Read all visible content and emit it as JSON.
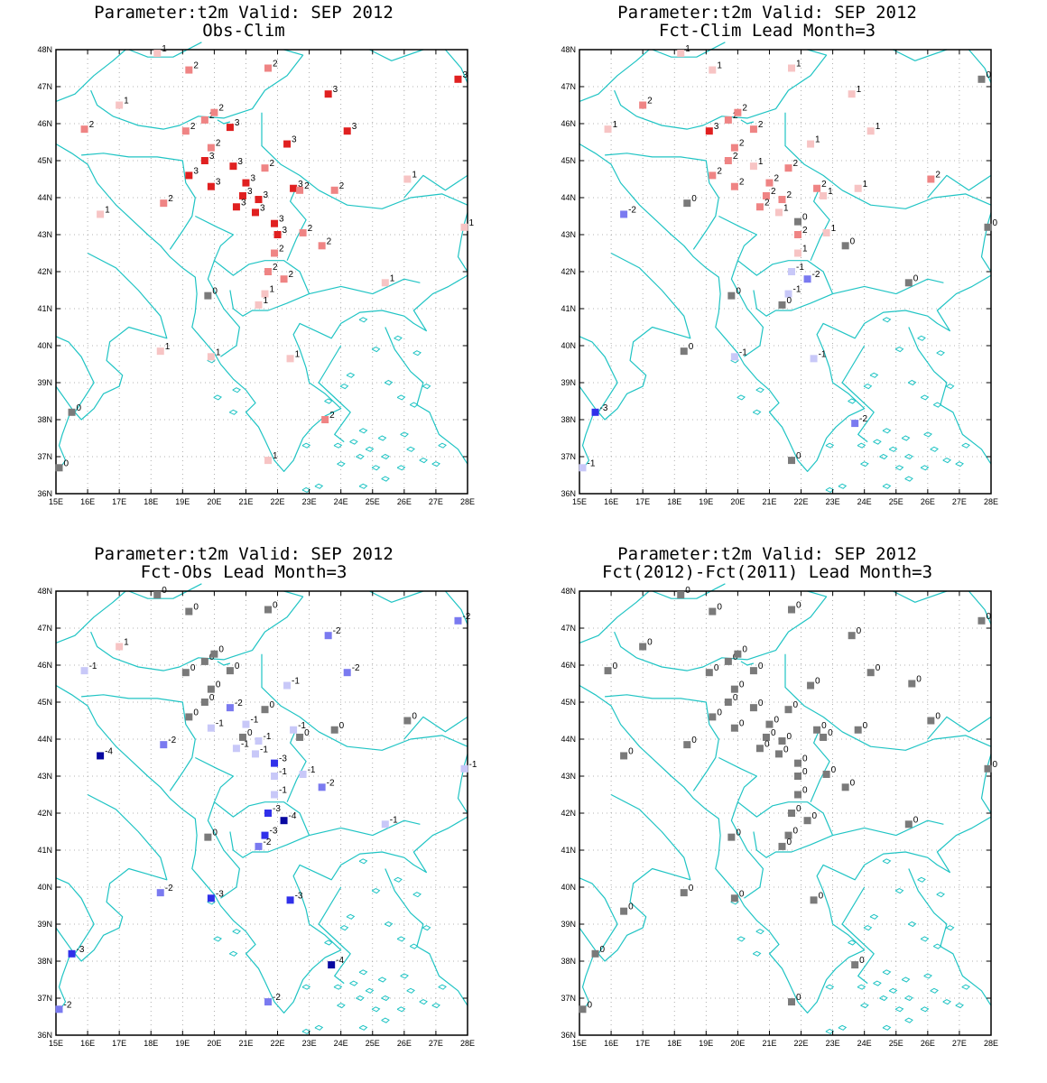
{
  "colors": {
    "coast": "#20c4c4",
    "grid": "#9a9a9a",
    "zero": "#7a7a7a",
    "pos": [
      "#f7c4c4",
      "#ef8484",
      "#e02020"
    ],
    "neg": [
      "#c8c8f8",
      "#7a7af0",
      "#3030ea",
      "#0808a0"
    ]
  },
  "axes": {
    "lon_ticks": [
      "15E",
      "16E",
      "17E",
      "18E",
      "19E",
      "20E",
      "21E",
      "22E",
      "23E",
      "24E",
      "25E",
      "26E",
      "27E",
      "28E"
    ],
    "lat_ticks": [
      "36N",
      "37N",
      "38N",
      "39N",
      "40N",
      "41N",
      "42N",
      "43N",
      "44N",
      "45N",
      "46N",
      "47N",
      "48N"
    ],
    "lon_range": [
      15,
      28
    ],
    "lat_range": [
      36,
      48
    ]
  },
  "panels": [
    {
      "title1": "Parameter:t2m Valid: SEP 2012",
      "title2": "Obs-Clim",
      "stations": [
        [
          18.2,
          47.9,
          1
        ],
        [
          19.2,
          47.45,
          2
        ],
        [
          21.7,
          47.5,
          2
        ],
        [
          23.6,
          46.8,
          3
        ],
        [
          27.7,
          47.2,
          3
        ],
        [
          17.0,
          46.5,
          1
        ],
        [
          15.9,
          45.85,
          2
        ],
        [
          19.1,
          45.8,
          2
        ],
        [
          19.7,
          46.1,
          2
        ],
        [
          20.0,
          46.3,
          2
        ],
        [
          20.5,
          45.9,
          3
        ],
        [
          22.3,
          45.45,
          3
        ],
        [
          24.2,
          45.8,
          3
        ],
        [
          19.9,
          45.35,
          2
        ],
        [
          19.7,
          45.0,
          3
        ],
        [
          20.6,
          44.85,
          3
        ],
        [
          21.6,
          44.8,
          2
        ],
        [
          19.2,
          44.6,
          3
        ],
        [
          19.9,
          44.3,
          3
        ],
        [
          21.0,
          44.4,
          3
        ],
        [
          20.9,
          44.05,
          3
        ],
        [
          21.4,
          43.95,
          3
        ],
        [
          22.5,
          44.25,
          3
        ],
        [
          22.7,
          44.2,
          2
        ],
        [
          23.8,
          44.2,
          2
        ],
        [
          26.1,
          44.5,
          1
        ],
        [
          18.4,
          43.85,
          2
        ],
        [
          20.7,
          43.75,
          3
        ],
        [
          21.3,
          43.6,
          3
        ],
        [
          21.9,
          43.3,
          3
        ],
        [
          22.0,
          43.0,
          3
        ],
        [
          22.8,
          43.05,
          2
        ],
        [
          23.4,
          42.7,
          2
        ],
        [
          21.9,
          42.5,
          2
        ],
        [
          16.4,
          43.55,
          1
        ],
        [
          27.9,
          43.2,
          1
        ],
        [
          21.7,
          42.0,
          2
        ],
        [
          22.2,
          41.8,
          2
        ],
        [
          21.6,
          41.4,
          1
        ],
        [
          21.4,
          41.1,
          1
        ],
        [
          25.4,
          41.7,
          1
        ],
        [
          19.8,
          41.35,
          0
        ],
        [
          18.3,
          39.85,
          1
        ],
        [
          19.9,
          39.7,
          1
        ],
        [
          22.4,
          39.65,
          1
        ],
        [
          23.5,
          38.0,
          2
        ],
        [
          15.5,
          38.2,
          0
        ],
        [
          15.1,
          36.7,
          0
        ],
        [
          21.7,
          36.9,
          1
        ]
      ]
    },
    {
      "title1": "Parameter:t2m Valid: SEP 2012",
      "title2": "Fct-Clim Lead Month=3",
      "stations": [
        [
          18.2,
          47.9,
          1
        ],
        [
          19.2,
          47.45,
          1
        ],
        [
          21.7,
          47.5,
          1
        ],
        [
          23.6,
          46.8,
          1
        ],
        [
          27.7,
          47.2,
          0
        ],
        [
          17.0,
          46.5,
          2
        ],
        [
          15.9,
          45.85,
          1
        ],
        [
          19.1,
          45.8,
          3
        ],
        [
          19.7,
          46.1,
          2
        ],
        [
          20.0,
          46.3,
          2
        ],
        [
          20.5,
          45.85,
          2
        ],
        [
          22.3,
          45.45,
          1
        ],
        [
          24.2,
          45.8,
          1
        ],
        [
          19.9,
          45.35,
          2
        ],
        [
          19.7,
          45.0,
          2
        ],
        [
          20.5,
          44.85,
          1
        ],
        [
          21.6,
          44.8,
          2
        ],
        [
          19.2,
          44.6,
          2
        ],
        [
          19.9,
          44.3,
          2
        ],
        [
          21.0,
          44.4,
          2
        ],
        [
          20.9,
          44.05,
          2
        ],
        [
          21.4,
          43.95,
          2
        ],
        [
          22.5,
          44.25,
          2
        ],
        [
          22.7,
          44.05,
          1
        ],
        [
          23.8,
          44.25,
          1
        ],
        [
          26.1,
          44.5,
          2
        ],
        [
          18.4,
          43.85,
          0
        ],
        [
          20.7,
          43.75,
          2
        ],
        [
          21.3,
          43.6,
          1
        ],
        [
          21.9,
          43.35,
          0
        ],
        [
          21.9,
          43.0,
          2
        ],
        [
          22.8,
          43.05,
          1
        ],
        [
          23.4,
          42.7,
          0
        ],
        [
          21.9,
          42.5,
          1
        ],
        [
          16.4,
          43.55,
          -2
        ],
        [
          27.9,
          43.2,
          0
        ],
        [
          21.7,
          42.0,
          -1
        ],
        [
          22.2,
          41.8,
          -2
        ],
        [
          21.6,
          41.4,
          -1
        ],
        [
          21.4,
          41.1,
          0
        ],
        [
          25.4,
          41.7,
          0
        ],
        [
          19.8,
          41.35,
          0
        ],
        [
          18.3,
          39.85,
          0
        ],
        [
          19.9,
          39.7,
          -1
        ],
        [
          22.4,
          39.65,
          -1
        ],
        [
          23.7,
          37.9,
          -2
        ],
        [
          15.5,
          38.2,
          -3
        ],
        [
          15.1,
          36.7,
          -1
        ],
        [
          21.7,
          36.9,
          0
        ]
      ]
    },
    {
      "title1": "Parameter:t2m Valid: SEP 2012",
      "title2": "Fct-Obs Lead Month=3",
      "stations": [
        [
          18.2,
          47.9,
          0
        ],
        [
          19.2,
          47.45,
          0
        ],
        [
          21.7,
          47.5,
          0
        ],
        [
          23.6,
          46.8,
          -2
        ],
        [
          27.7,
          47.2,
          -2
        ],
        [
          17.0,
          46.5,
          1
        ],
        [
          15.9,
          45.85,
          -1
        ],
        [
          19.1,
          45.8,
          0
        ],
        [
          19.7,
          46.1,
          0
        ],
        [
          20.0,
          46.3,
          0
        ],
        [
          20.5,
          45.85,
          0
        ],
        [
          22.3,
          45.45,
          -1
        ],
        [
          24.2,
          45.8,
          -2
        ],
        [
          19.9,
          45.35,
          0
        ],
        [
          19.7,
          45.0,
          0
        ],
        [
          20.5,
          44.85,
          -2
        ],
        [
          21.6,
          44.8,
          0
        ],
        [
          19.2,
          44.6,
          0
        ],
        [
          19.9,
          44.3,
          -1
        ],
        [
          21.0,
          44.4,
          -1
        ],
        [
          20.9,
          44.05,
          0
        ],
        [
          21.4,
          43.95,
          -1
        ],
        [
          22.5,
          44.25,
          -1
        ],
        [
          22.7,
          44.05,
          0
        ],
        [
          23.8,
          44.25,
          0
        ],
        [
          26.1,
          44.5,
          0
        ],
        [
          18.4,
          43.85,
          -2
        ],
        [
          20.7,
          43.75,
          -1
        ],
        [
          21.3,
          43.6,
          -1
        ],
        [
          21.9,
          43.35,
          -3
        ],
        [
          21.9,
          43.0,
          -1
        ],
        [
          22.8,
          43.05,
          -1
        ],
        [
          23.4,
          42.7,
          -2
        ],
        [
          21.9,
          42.5,
          -1
        ],
        [
          16.4,
          43.55,
          -4
        ],
        [
          27.9,
          43.2,
          -1
        ],
        [
          21.7,
          42.0,
          -3
        ],
        [
          22.2,
          41.8,
          -4
        ],
        [
          21.6,
          41.4,
          -3
        ],
        [
          21.4,
          41.1,
          -2
        ],
        [
          25.4,
          41.7,
          -1
        ],
        [
          19.8,
          41.35,
          0
        ],
        [
          18.3,
          39.85,
          -2
        ],
        [
          19.9,
          39.7,
          -3
        ],
        [
          22.4,
          39.65,
          -3
        ],
        [
          23.7,
          37.9,
          -4
        ],
        [
          15.5,
          38.2,
          -3
        ],
        [
          15.1,
          36.7,
          -2
        ],
        [
          21.7,
          36.9,
          -2
        ]
      ]
    },
    {
      "title1": "Parameter:t2m Valid: SEP 2012",
      "title2": "Fct(2012)-Fct(2011) Lead Month=3",
      "stations": [
        [
          18.2,
          47.9,
          0
        ],
        [
          19.2,
          47.45,
          0
        ],
        [
          21.7,
          47.5,
          0
        ],
        [
          23.6,
          46.8,
          0
        ],
        [
          27.7,
          47.2,
          0
        ],
        [
          17.0,
          46.5,
          0
        ],
        [
          15.9,
          45.85,
          0
        ],
        [
          19.1,
          45.8,
          0
        ],
        [
          19.7,
          46.1,
          0
        ],
        [
          20.0,
          46.3,
          0
        ],
        [
          20.5,
          45.85,
          0
        ],
        [
          22.3,
          45.45,
          0
        ],
        [
          24.2,
          45.8,
          0
        ],
        [
          25.5,
          45.5,
          0
        ],
        [
          19.9,
          45.35,
          0
        ],
        [
          19.7,
          45.0,
          0
        ],
        [
          20.5,
          44.85,
          0
        ],
        [
          21.6,
          44.8,
          0
        ],
        [
          19.2,
          44.6,
          0
        ],
        [
          19.9,
          44.3,
          0
        ],
        [
          21.0,
          44.4,
          0
        ],
        [
          20.9,
          44.05,
          0
        ],
        [
          21.4,
          43.95,
          0
        ],
        [
          22.5,
          44.25,
          0
        ],
        [
          22.7,
          44.05,
          0
        ],
        [
          23.8,
          44.25,
          0
        ],
        [
          26.1,
          44.5,
          0
        ],
        [
          18.4,
          43.85,
          0
        ],
        [
          20.7,
          43.75,
          0
        ],
        [
          21.3,
          43.6,
          0
        ],
        [
          21.9,
          43.35,
          0
        ],
        [
          21.9,
          43.0,
          0
        ],
        [
          22.8,
          43.05,
          0
        ],
        [
          23.4,
          42.7,
          0
        ],
        [
          21.9,
          42.5,
          0
        ],
        [
          16.4,
          43.55,
          0
        ],
        [
          27.9,
          43.2,
          0
        ],
        [
          21.7,
          42.0,
          0
        ],
        [
          22.2,
          41.8,
          0
        ],
        [
          21.6,
          41.4,
          0
        ],
        [
          21.4,
          41.1,
          0
        ],
        [
          25.4,
          41.7,
          0
        ],
        [
          19.8,
          41.35,
          0
        ],
        [
          18.3,
          39.85,
          0
        ],
        [
          19.9,
          39.7,
          0
        ],
        [
          22.4,
          39.65,
          0
        ],
        [
          23.7,
          37.9,
          0
        ],
        [
          16.4,
          39.35,
          0
        ],
        [
          15.5,
          38.2,
          0
        ],
        [
          15.1,
          36.7,
          0
        ],
        [
          21.7,
          36.9,
          0
        ]
      ]
    }
  ]
}
